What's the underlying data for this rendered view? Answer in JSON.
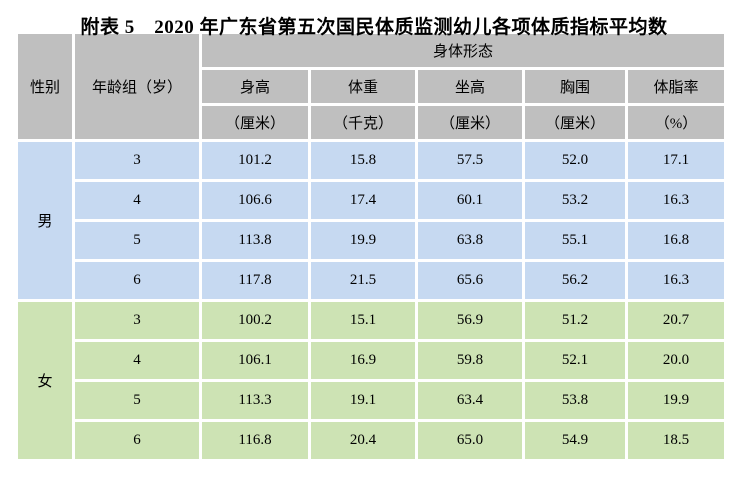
{
  "title": "附表 5　2020 年广东省第五次国民体质监测幼儿各项体质指标平均数",
  "colors": {
    "header_bg": "#bfbfbf",
    "male_row_bg": "#c6d9f1",
    "female_row_bg": "#cde3b4",
    "gap": "#ffffff",
    "text": "#000000"
  },
  "table": {
    "headers": {
      "gender": "性别",
      "age_group": "年龄组（岁）",
      "group": "身体形态",
      "columns": [
        "身高",
        "体重",
        "坐高",
        "胸围",
        "体脂率"
      ],
      "units": [
        "（厘米）",
        "（千克）",
        "（厘米）",
        "（厘米）",
        "（%）"
      ]
    },
    "sections": [
      {
        "gender": "男",
        "rows": [
          {
            "age": "3",
            "values": [
              "101.2",
              "15.8",
              "57.5",
              "52.0",
              "17.1"
            ]
          },
          {
            "age": "4",
            "values": [
              "106.6",
              "17.4",
              "60.1",
              "53.2",
              "16.3"
            ]
          },
          {
            "age": "5",
            "values": [
              "113.8",
              "19.9",
              "63.8",
              "55.1",
              "16.8"
            ]
          },
          {
            "age": "6",
            "values": [
              "117.8",
              "21.5",
              "65.6",
              "56.2",
              "16.3"
            ]
          }
        ]
      },
      {
        "gender": "女",
        "rows": [
          {
            "age": "3",
            "values": [
              "100.2",
              "15.1",
              "56.9",
              "51.2",
              "20.7"
            ]
          },
          {
            "age": "4",
            "values": [
              "106.1",
              "16.9",
              "59.8",
              "52.1",
              "20.0"
            ]
          },
          {
            "age": "5",
            "values": [
              "113.3",
              "19.1",
              "63.4",
              "53.8",
              "19.9"
            ]
          },
          {
            "age": "6",
            "values": [
              "116.8",
              "20.4",
              "65.0",
              "54.9",
              "18.5"
            ]
          }
        ]
      }
    ]
  }
}
